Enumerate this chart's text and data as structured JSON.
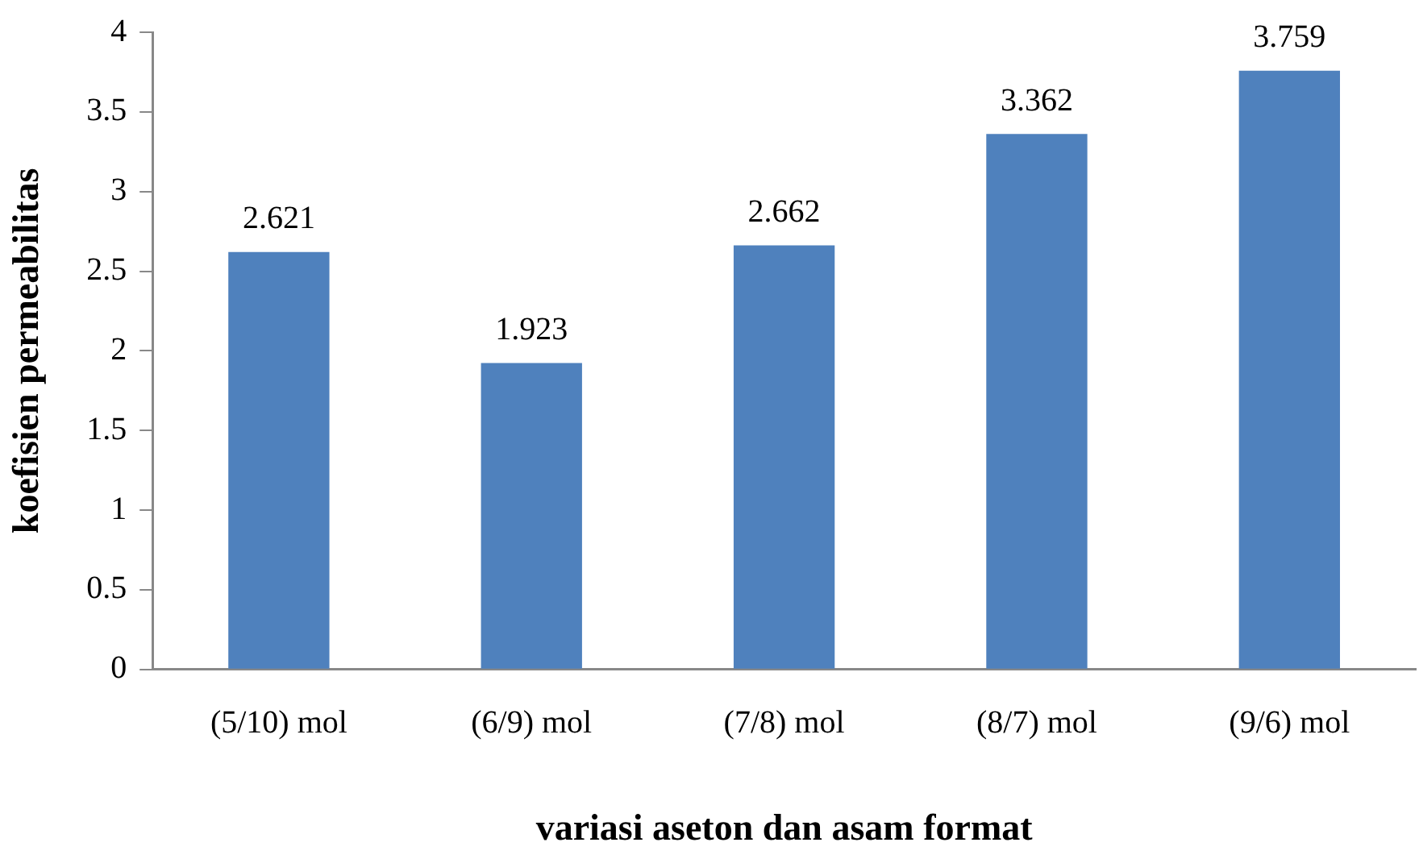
{
  "chart_data": {
    "type": "bar",
    "xlabel": "variasi aseton dan asam format",
    "ylabel": "koefisien permeabilitas",
    "categories": [
      "(5/10) mol",
      "(6/9) mol",
      "(7/8) mol",
      "(8/7) mol",
      "(9/6) mol"
    ],
    "values": [
      2.621,
      1.923,
      2.662,
      3.362,
      3.759
    ],
    "color": "#4f81bd",
    "ylim": [
      0,
      4
    ],
    "yticks": [
      0,
      0.5,
      1,
      1.5,
      2,
      2.5,
      3,
      3.5,
      4
    ],
    "grid": false,
    "legend": false,
    "data_labels": true
  }
}
